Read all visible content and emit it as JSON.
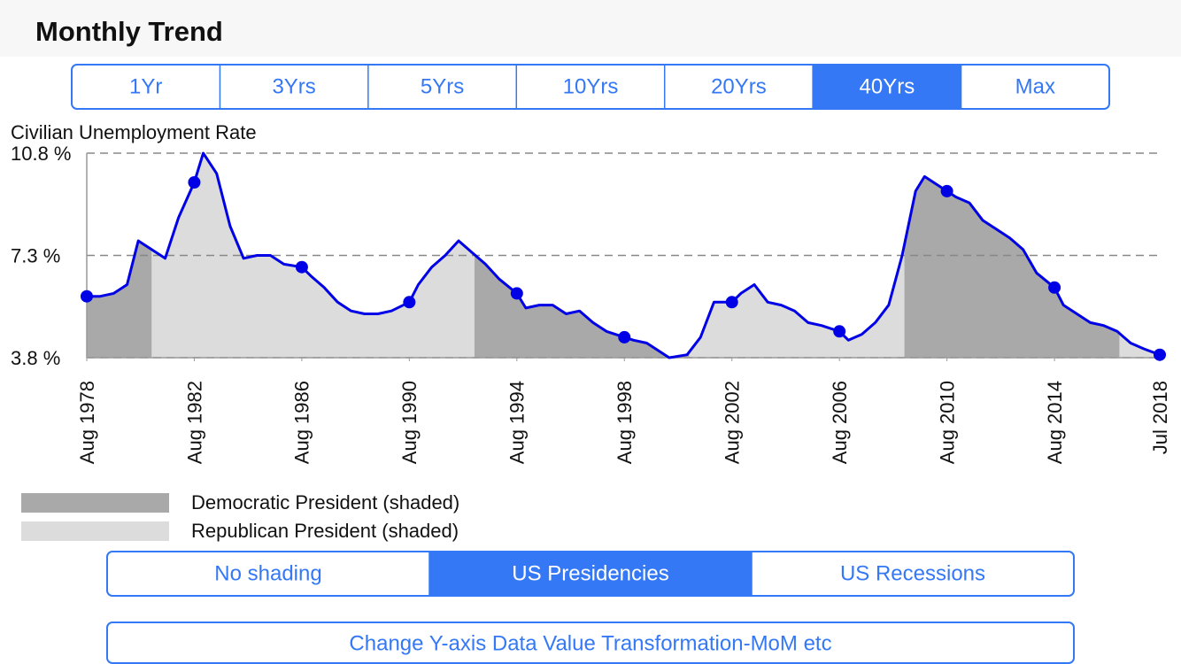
{
  "header": {
    "title": "Monthly Trend"
  },
  "range_buttons": {
    "options": [
      "1Yr",
      "3Yrs",
      "5Yrs",
      "10Yrs",
      "20Yrs",
      "40Yrs",
      "Max"
    ],
    "selected": 5
  },
  "chart_data": {
    "type": "line",
    "ylabel": "Civilian Unemployment Rate",
    "x": [
      "1978-08",
      "1979-02",
      "1979-08",
      "1980-02",
      "1980-07",
      "1981-01",
      "1981-07",
      "1982-01",
      "1982-08",
      "1982-12",
      "1983-06",
      "1983-12",
      "1984-06",
      "1984-12",
      "1985-06",
      "1985-12",
      "1986-08",
      "1986-12",
      "1987-06",
      "1987-12",
      "1988-06",
      "1988-12",
      "1989-06",
      "1989-12",
      "1990-08",
      "1990-12",
      "1991-06",
      "1991-12",
      "1992-06",
      "1992-12",
      "1993-06",
      "1993-12",
      "1994-08",
      "1994-12",
      "1995-06",
      "1995-12",
      "1996-06",
      "1996-12",
      "1997-06",
      "1997-12",
      "1998-08",
      "1998-12",
      "1999-06",
      "1999-12",
      "2000-04",
      "2000-12",
      "2001-06",
      "2001-12",
      "2002-08",
      "2002-12",
      "2003-06",
      "2003-12",
      "2004-06",
      "2004-12",
      "2005-06",
      "2005-12",
      "2006-08",
      "2006-12",
      "2007-06",
      "2007-12",
      "2008-06",
      "2008-12",
      "2009-06",
      "2009-10",
      "2010-08",
      "2010-12",
      "2011-06",
      "2011-12",
      "2012-06",
      "2012-12",
      "2013-06",
      "2013-12",
      "2014-08",
      "2014-12",
      "2015-06",
      "2015-12",
      "2016-06",
      "2016-12",
      "2017-06",
      "2017-12",
      "2018-07"
    ],
    "values": [
      5.9,
      5.9,
      6.0,
      6.3,
      7.8,
      7.5,
      7.2,
      8.6,
      9.8,
      10.8,
      10.1,
      8.3,
      7.2,
      7.3,
      7.3,
      7.0,
      6.9,
      6.6,
      6.2,
      5.7,
      5.4,
      5.3,
      5.3,
      5.4,
      5.7,
      6.3,
      6.9,
      7.3,
      7.8,
      7.4,
      7.0,
      6.5,
      6.0,
      5.5,
      5.6,
      5.6,
      5.3,
      5.4,
      5.0,
      4.7,
      4.5,
      4.4,
      4.3,
      4.0,
      3.8,
      3.9,
      4.5,
      5.7,
      5.7,
      6.0,
      6.3,
      5.7,
      5.6,
      5.4,
      5.0,
      4.9,
      4.7,
      4.4,
      4.6,
      5.0,
      5.6,
      7.3,
      9.5,
      10.0,
      9.5,
      9.3,
      9.1,
      8.5,
      8.2,
      7.9,
      7.5,
      6.7,
      6.2,
      5.6,
      5.3,
      5.0,
      4.9,
      4.7,
      4.3,
      4.1,
      3.9
    ],
    "color": "#0000e6",
    "xlim": [
      "1978-08",
      "2018-07"
    ],
    "xticks": [
      {
        "value": "1978-08",
        "label": "Aug 1978"
      },
      {
        "value": "1982-08",
        "label": "Aug 1982"
      },
      {
        "value": "1986-08",
        "label": "Aug 1986"
      },
      {
        "value": "1990-08",
        "label": "Aug 1990"
      },
      {
        "value": "1994-08",
        "label": "Aug 1994"
      },
      {
        "value": "1998-08",
        "label": "Aug 1998"
      },
      {
        "value": "2002-08",
        "label": "Aug 2002"
      },
      {
        "value": "2006-08",
        "label": "Aug 2006"
      },
      {
        "value": "2010-08",
        "label": "Aug 2010"
      },
      {
        "value": "2014-08",
        "label": "Aug 2014"
      },
      {
        "value": "2018-07",
        "label": "Jul 2018"
      }
    ],
    "ylim": [
      3.8,
      10.8
    ],
    "yticks": [
      {
        "value": 3.8,
        "label": "3.8 %"
      },
      {
        "value": 7.3,
        "label": "7.3 %"
      },
      {
        "value": 10.8,
        "label": "10.8 %"
      }
    ],
    "grid": true,
    "shading": [
      {
        "label": "Democratic President (shaded)",
        "color": "#a9a9a9",
        "periods": [
          [
            "1978-08",
            "1981-01"
          ],
          [
            "1993-01",
            "2001-01"
          ],
          [
            "2009-01",
            "2017-01"
          ]
        ]
      },
      {
        "label": "Republican President (shaded)",
        "color": "#dcdcdc",
        "periods": [
          [
            "1981-01",
            "1993-01"
          ],
          [
            "2001-01",
            "2009-01"
          ],
          [
            "2017-01",
            "2018-07"
          ]
        ]
      }
    ]
  },
  "shading_buttons": {
    "options": [
      "No shading",
      "US Presidencies",
      "US Recessions"
    ],
    "selected": 1
  },
  "transform_button": {
    "label": "Change Y-axis Data Value Transformation-MoM etc"
  }
}
